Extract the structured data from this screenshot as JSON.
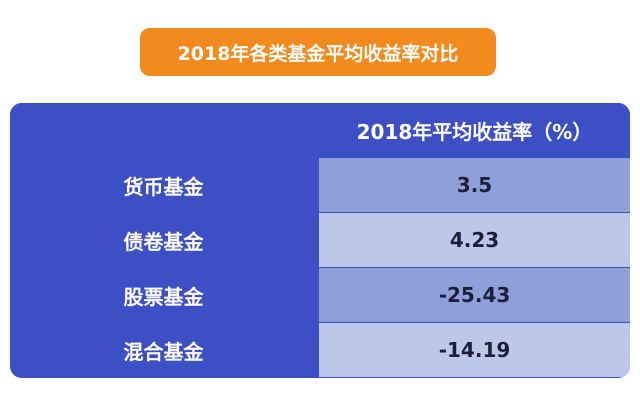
{
  "header": {
    "title": "2018年各类基金平均收益率对比"
  },
  "table": {
    "columns": [
      "",
      "2018年平均收益率（%）"
    ],
    "rows": [
      [
        "货币基金",
        "3.5"
      ],
      [
        "债卷基金",
        "4.23"
      ],
      [
        "股票基金",
        "-25.43"
      ],
      [
        "混合基金",
        "-14.19"
      ]
    ]
  }
}
